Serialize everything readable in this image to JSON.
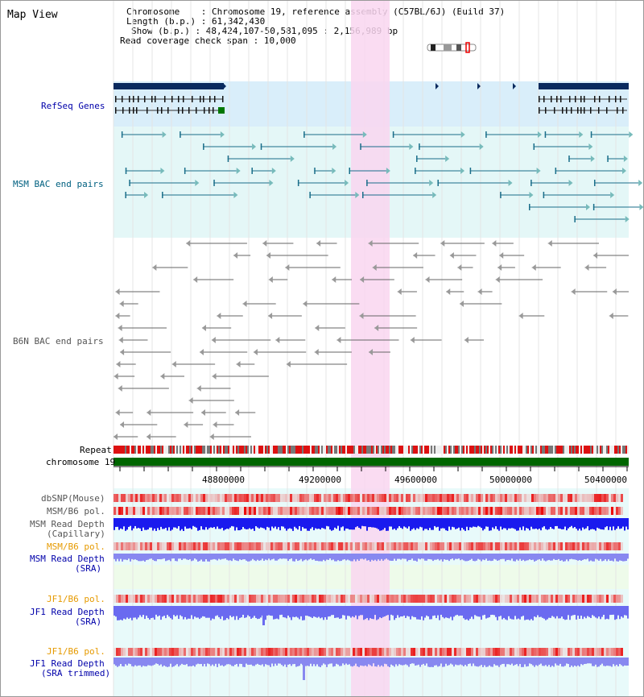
{
  "header": {
    "title": "Map View",
    "chromosome_label": "Chromosome",
    "chromosome_value": "Chromosome 19, reference assembly (C57BL/6J) (Build 37)",
    "length_label": "Length (b.p.)",
    "length_value": "61,342,430",
    "show_label": "Show (b.p.)",
    "show_value": "48,424,107-50,581,095 : 2,156,989 bp",
    "coverage_label": "Read coverage check span",
    "coverage_value": "10,000"
  },
  "tracks": {
    "refseq": "RefSeq Genes",
    "msm_bac": "MSM BAC end pairs",
    "b6n_bac": "B6N BAC end pairs",
    "repeat": "Repeat",
    "chromosome": "chromosome 19",
    "dbsnp": "dbSNP(Mouse)",
    "msm_b6_pol_1": "MSM/B6 pol.",
    "msm_read_depth_cap_1": "MSM Read Depth",
    "msm_read_depth_cap_2": "(Capillary)",
    "msm_b6_pol_2": "MSM/B6 pol.",
    "msm_read_depth_sra_1": "MSM Read Depth",
    "msm_read_depth_sra_2": "(SRA)",
    "jf1_b6_pol_1": "JF1/B6 pol.",
    "jf1_read_depth_sra_1": "JF1 Read Depth",
    "jf1_read_depth_sra_2": "(SRA)",
    "jf1_b6_pol_2": "JF1/B6 pol.",
    "jf1_read_depth_trim_1": "JF1 Read Depth",
    "jf1_read_depth_trim_2": "(SRA trimmed)"
  },
  "axis": {
    "ticks": [
      "48800000",
      "49200000",
      "49600000",
      "50000000",
      "50400000"
    ]
  },
  "colors": {
    "refseq_bg": "#d9eefa",
    "msm_bg": "#e4f7f7",
    "highlight": "#f9d6f0",
    "refseq_gene": "#0a2a5e",
    "msm_feature": "#1a6e8a",
    "b6n_feature": "#666666",
    "chromosome": "#006600",
    "snp_red": "#e02020",
    "depth_blue": "#1a1aee",
    "depth_light": "#8888f0"
  }
}
